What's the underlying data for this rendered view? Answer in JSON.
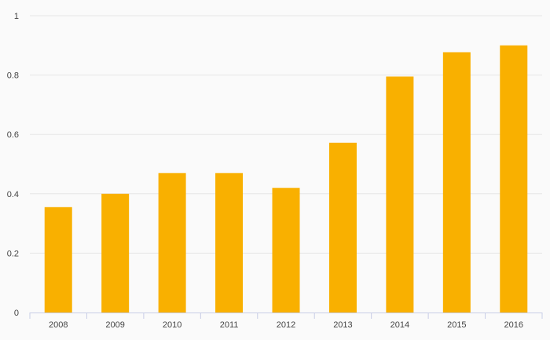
{
  "chart_data": {
    "type": "bar",
    "title": "",
    "xlabel": "",
    "ylabel": "",
    "categories": [
      "2008",
      "2009",
      "2010",
      "2011",
      "2012",
      "2013",
      "2014",
      "2015",
      "2016"
    ],
    "values": [
      0.355,
      0.4,
      0.47,
      0.47,
      0.42,
      0.572,
      0.795,
      0.877,
      0.9
    ],
    "ylim": [
      0,
      1
    ],
    "yticks": [
      "0",
      "0.2",
      "0.4",
      "0.6",
      "0.8",
      "1"
    ],
    "ytick_values": [
      0,
      0.2,
      0.4,
      0.6,
      0.8,
      1
    ],
    "grid": true,
    "legend": "none",
    "colors": {
      "bar": "#f9b000",
      "grid": "#e6e6e6",
      "axis": "#c8cde6",
      "text": "#444444",
      "background": "#fafafa"
    }
  }
}
